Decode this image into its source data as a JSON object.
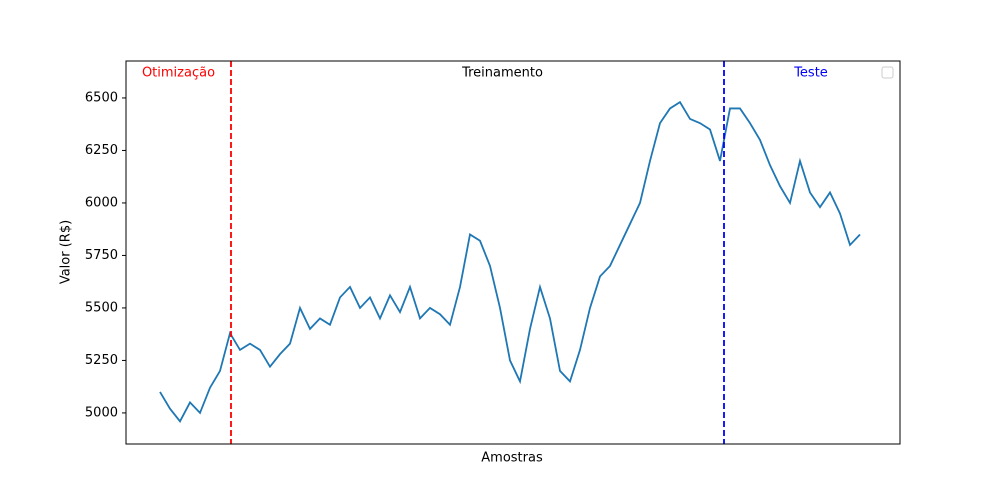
{
  "chart_data": {
    "type": "line",
    "xlabel": "Amostras",
    "ylabel": "Valor (R$)",
    "series": [
      {
        "color": "#1f77b4",
        "values": [
          5100,
          5020,
          4960,
          5050,
          5000,
          5120,
          5200,
          5380,
          5300,
          5330,
          5300,
          5220,
          5280,
          5330,
          5500,
          5400,
          5450,
          5420,
          5550,
          5600,
          5500,
          5550,
          5450,
          5560,
          5480,
          5600,
          5450,
          5500,
          5470,
          5420,
          5600,
          5850,
          5820,
          5700,
          5500,
          5250,
          5150,
          5400,
          5600,
          5450,
          5200,
          5150,
          5300,
          5500,
          5650,
          5700,
          5800,
          5900,
          6000,
          6200,
          6380,
          6450,
          6480,
          6400,
          6380,
          6350,
          6200,
          6450,
          6450,
          6380,
          6300,
          6180,
          6080,
          6000,
          6200,
          6050,
          5980,
          6050,
          5950,
          5800,
          5850
        ]
      }
    ],
    "xlim": [
      -3.4,
      74
    ],
    "ylim": [
      4852,
      6676
    ],
    "yticks": [
      5000,
      5250,
      5500,
      5750,
      6000,
      6250,
      6500
    ],
    "vlines": [
      {
        "x": 7.1,
        "color": "#ff0000"
      },
      {
        "x": 56.4,
        "color": "#0000ff"
      }
    ],
    "annotations": [
      {
        "text": "Otimização",
        "color": "#ff0000"
      },
      {
        "text": "Treinamento",
        "color": "#000000"
      },
      {
        "text": "Teste",
        "color": "#0000ff"
      }
    ]
  }
}
